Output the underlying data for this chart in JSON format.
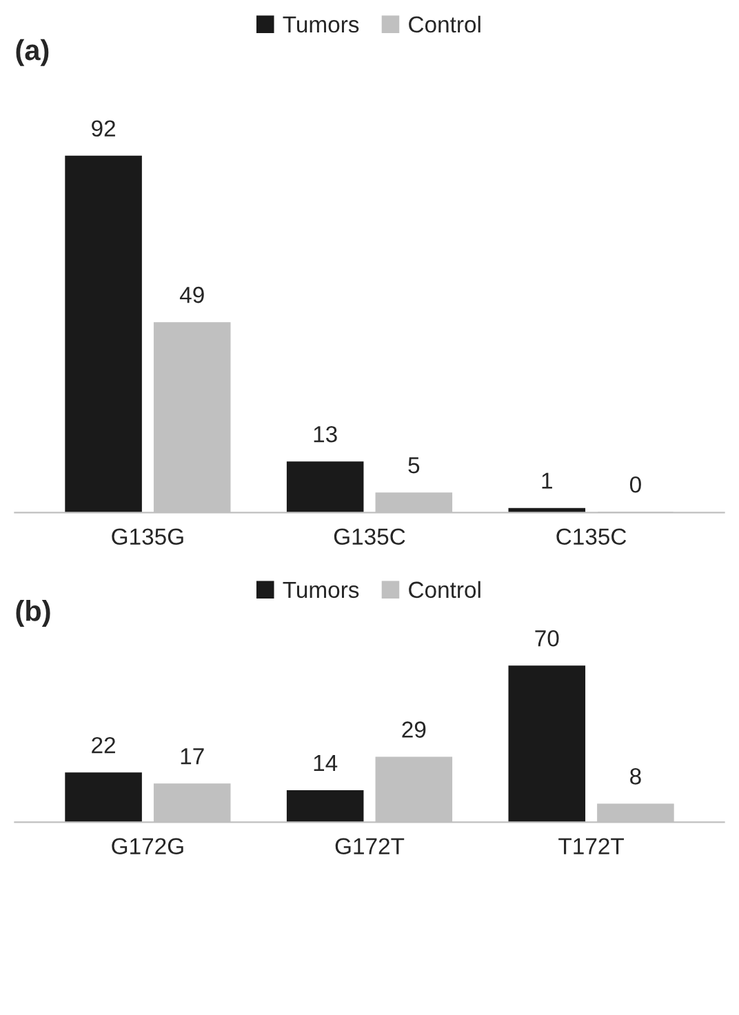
{
  "chart_data": [
    {
      "type": "bar",
      "title": "(a)",
      "categories": [
        "G135G",
        "G135C",
        "C135C"
      ],
      "data_labels": true,
      "legend": "top",
      "series": [
        {
          "name": "Tumors",
          "color": "#1a1a1a",
          "values": [
            92,
            13,
            1
          ]
        },
        {
          "name": "Control",
          "color": "#c0c0c0",
          "values": [
            49,
            5,
            0
          ]
        }
      ]
    },
    {
      "type": "bar",
      "title": "(b)",
      "categories": [
        "G172G",
        "G172T",
        "T172T"
      ],
      "data_labels": true,
      "legend": "top",
      "series": [
        {
          "name": "Tumors",
          "color": "#1a1a1a",
          "values": [
            22,
            14,
            70
          ]
        },
        {
          "name": "Control",
          "color": "#c0c0c0",
          "values": [
            17,
            29,
            8
          ]
        }
      ]
    }
  ]
}
